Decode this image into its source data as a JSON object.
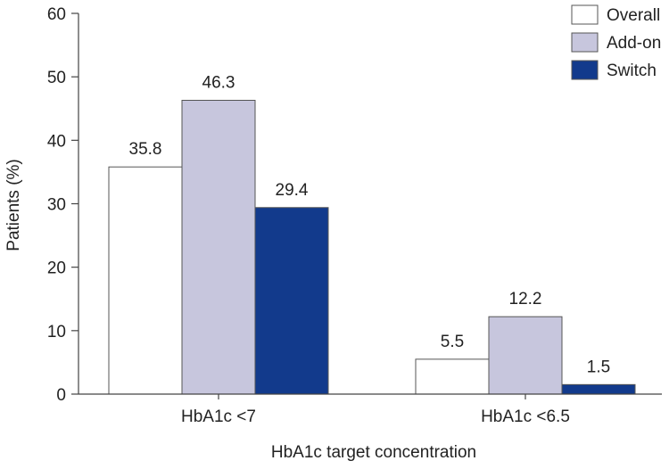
{
  "chart_data": {
    "type": "bar",
    "title": "",
    "xlabel": "HbA1c target concentration",
    "ylabel": "Patients (%)",
    "ylim": [
      0,
      60
    ],
    "yticks": [
      0,
      10,
      20,
      30,
      40,
      50,
      60
    ],
    "categories": [
      "HbA1c <7",
      "HbA1c <6.5"
    ],
    "series": [
      {
        "name": "Overall",
        "values": [
          35.8,
          5.5
        ],
        "color": "#ffffff"
      },
      {
        "name": "Add-on",
        "values": [
          46.3,
          12.2
        ],
        "color": "#c7c6dd"
      },
      {
        "name": "Switch",
        "values": [
          29.4,
          1.5
        ],
        "color": "#123a8c"
      }
    ],
    "legend_position": "top-right",
    "grid": false
  }
}
